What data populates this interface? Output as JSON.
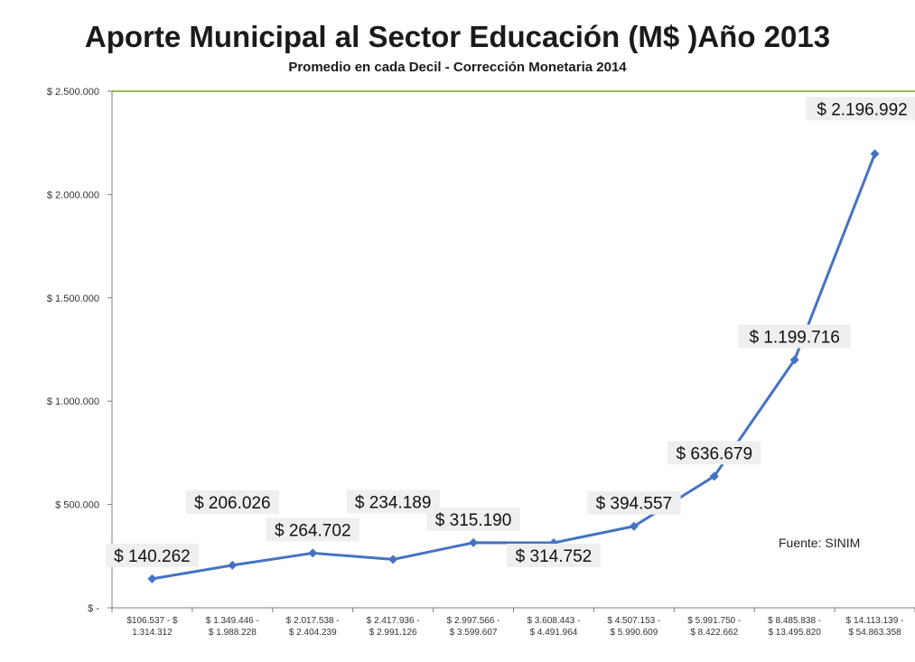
{
  "chart_data": {
    "type": "line",
    "title": "Aporte Municipal al Sector Educación (M$ )Año 2013",
    "subtitle": "Promedio en cada Decil - Corrección Monetaria 2014",
    "categories": [
      [
        "$106.537 - $",
        "1.314.312"
      ],
      [
        "$ 1.349.446 -",
        "$ 1.988.228"
      ],
      [
        "$ 2.017.538 -",
        "$ 2.404.239"
      ],
      [
        "$ 2.417.936 -",
        "$ 2.991.126"
      ],
      [
        "$ 2.997.566 -",
        "$ 3.599.607"
      ],
      [
        "$ 3.608.443 -",
        "$ 4.491.964"
      ],
      [
        "$ 4.507.153 -",
        "$ 5.990.609"
      ],
      [
        "$ 5.991.750 -",
        "$ 8.422.662"
      ],
      [
        "$ 8.485.838 -",
        "$ 13.495.820"
      ],
      [
        "$ 14.113.139 -",
        "$ 54.863.358"
      ]
    ],
    "series": [
      {
        "values": [
          140262,
          206026,
          264702,
          234189,
          315190,
          314752,
          394557,
          636679,
          1199716,
          2196992
        ],
        "color": "#4472c4"
      }
    ],
    "data_labels": [
      "$ 140.262",
      "$ 206.026",
      "$ 264.702",
      "$ 234.189",
      "$ 315.190",
      "$ 314.752",
      "$ 394.557",
      "$ 636.679",
      "$ 1.199.716",
      "$ 2.196.992"
    ],
    "ylim": [
      0,
      2500000
    ],
    "yticks": [
      0,
      500000,
      1000000,
      1500000,
      2000000,
      2500000
    ],
    "ytick_labels": [
      "$ -",
      "$ 500.000",
      "$ 1.000.000",
      "$ 1.500.000",
      "$ 2.000.000",
      "$ 2.500.000"
    ],
    "grid": false,
    "plot_border_color": "#9bbb59",
    "source_note": "Fuente: SINIM"
  }
}
